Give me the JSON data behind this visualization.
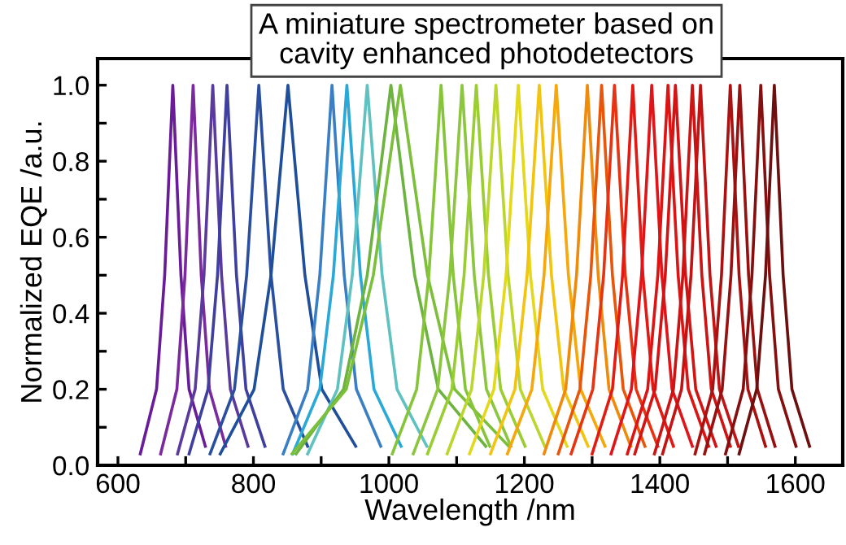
{
  "chart_data": {
    "type": "line",
    "title": "A miniature spectrometer based on\ncavity enhanced photodetectors",
    "xlabel": "Wavelength /nm",
    "ylabel": "Normalized EQE /a.u.",
    "xlim": [
      570,
      1670
    ],
    "ylim": [
      0,
      1.07
    ],
    "xticks": [
      600,
      {
        "value": 700,
        "label": null
      },
      800,
      {
        "value": 900,
        "label": null
      },
      1000,
      {
        "value": 1100,
        "label": null
      },
      1200,
      {
        "value": 1300,
        "label": null
      },
      1400,
      {
        "value": 1500,
        "label": null
      },
      1600
    ],
    "yticks": [
      {
        "value": 0,
        "label": "0.0"
      },
      {
        "value": 0.1,
        "label": null
      },
      {
        "value": 0.2,
        "label": "0.2"
      },
      {
        "value": 0.3,
        "label": null
      },
      {
        "value": 0.4,
        "label": "0.4"
      },
      {
        "value": 0.5,
        "label": null
      },
      {
        "value": 0.6,
        "label": "0.6"
      },
      {
        "value": 0.7,
        "label": null
      },
      {
        "value": 0.8,
        "label": "0.8"
      },
      {
        "value": 0.9,
        "label": null
      },
      {
        "value": 1.0,
        "label": "1.0"
      }
    ],
    "grid": false,
    "legend": false,
    "marker": "none",
    "line_style": "solid",
    "series": [
      {
        "color": "#6a1b9a",
        "x": [
          633,
          657,
          669,
          681,
          693,
          705,
          729
        ],
        "values": [
          0.03,
          0.2,
          0.5,
          1.0,
          0.5,
          0.2,
          0.05
        ]
      },
      {
        "color": "#7b2a9e",
        "x": [
          663,
          687,
          699,
          711,
          723,
          735,
          759
        ],
        "values": [
          0.03,
          0.2,
          0.5,
          1.0,
          0.5,
          0.2,
          0.05
        ]
      },
      {
        "color": "#5b3a9e",
        "x": [
          688,
          714,
          727,
          740,
          753,
          766,
          792
        ],
        "values": [
          0.03,
          0.2,
          0.5,
          1.0,
          0.5,
          0.2,
          0.05
        ]
      },
      {
        "color": "#3f3f9f",
        "x": [
          705,
          733,
          747,
          761,
          775,
          789,
          817
        ],
        "values": [
          0.03,
          0.2,
          0.5,
          1.0,
          0.5,
          0.2,
          0.05
        ]
      },
      {
        "color": "#2b4fa0",
        "x": [
          736,
          772,
          790,
          808,
          826,
          844,
          880
        ],
        "values": [
          0.03,
          0.2,
          0.5,
          1.0,
          0.5,
          0.2,
          0.05
        ]
      },
      {
        "color": "#1f4f9a",
        "x": [
          751,
          801,
          826,
          851,
          876,
          901,
          951
        ],
        "values": [
          0.03,
          0.2,
          0.5,
          1.0,
          0.5,
          0.2,
          0.05
        ]
      },
      {
        "color": "#3a7fc4",
        "x": [
          844,
          880,
          898,
          916,
          934,
          952,
          988
        ],
        "values": [
          0.03,
          0.2,
          0.5,
          1.0,
          0.5,
          0.2,
          0.05
        ]
      },
      {
        "color": "#2aa8d8",
        "x": [
          858,
          898,
          918,
          938,
          958,
          978,
          1018
        ],
        "values": [
          0.03,
          0.2,
          0.5,
          1.0,
          0.5,
          0.2,
          0.05
        ]
      },
      {
        "color": "#5fc1c0",
        "x": [
          880,
          924,
          946,
          968,
          990,
          1012,
          1056
        ],
        "values": [
          0.03,
          0.2,
          0.5,
          1.0,
          0.5,
          0.2,
          0.05
        ]
      },
      {
        "color": "#6db33f",
        "x": [
          863,
          933,
          968,
          1003,
          1038,
          1073,
          1143
        ],
        "values": [
          0.03,
          0.2,
          0.5,
          1.0,
          0.5,
          0.2,
          0.05
        ]
      },
      {
        "color": "#7cbf3a",
        "x": [
          857,
          937,
          977,
          1017,
          1057,
          1097,
          1177
        ],
        "values": [
          0.03,
          0.2,
          0.5,
          1.0,
          0.5,
          0.2,
          0.05
        ]
      },
      {
        "color": "#86c53a",
        "x": [
          1005,
          1041,
          1059,
          1077,
          1095,
          1113,
          1149
        ],
        "values": [
          0.03,
          0.2,
          0.5,
          1.0,
          0.5,
          0.2,
          0.05
        ]
      },
      {
        "color": "#8cc63f",
        "x": [
          1036,
          1072,
          1090,
          1108,
          1126,
          1144,
          1180
        ],
        "values": [
          0.03,
          0.2,
          0.5,
          1.0,
          0.5,
          0.2,
          0.05
        ]
      },
      {
        "color": "#9acd32",
        "x": [
          1057,
          1093,
          1111,
          1129,
          1147,
          1165,
          1201
        ],
        "values": [
          0.03,
          0.2,
          0.5,
          1.0,
          0.5,
          0.2,
          0.05
        ]
      },
      {
        "color": "#bcd630",
        "x": [
          1086,
          1122,
          1140,
          1158,
          1176,
          1194,
          1230
        ],
        "values": [
          0.03,
          0.2,
          0.5,
          1.0,
          0.5,
          0.2,
          0.05
        ]
      },
      {
        "color": "#e3d81c",
        "x": [
          1119,
          1155,
          1173,
          1191,
          1209,
          1227,
          1263
        ],
        "values": [
          0.03,
          0.2,
          0.5,
          1.0,
          0.5,
          0.2,
          0.05
        ]
      },
      {
        "color": "#f2c40f",
        "x": [
          1150,
          1186,
          1204,
          1222,
          1240,
          1258,
          1294
        ],
        "values": [
          0.03,
          0.2,
          0.5,
          1.0,
          0.5,
          0.2,
          0.05
        ]
      },
      {
        "color": "#f5a70c",
        "x": [
          1175,
          1211,
          1229,
          1247,
          1265,
          1283,
          1319
        ],
        "values": [
          0.03,
          0.2,
          0.5,
          1.0,
          0.5,
          0.2,
          0.05
        ]
      },
      {
        "color": "#f08a0a",
        "x": [
          1229,
          1261,
          1277,
          1293,
          1309,
          1325,
          1357
        ],
        "values": [
          0.03,
          0.2,
          0.5,
          1.0,
          0.5,
          0.2,
          0.05
        ]
      },
      {
        "color": "#e8560c",
        "x": [
          1250,
          1282,
          1298,
          1314,
          1330,
          1346,
          1378
        ],
        "values": [
          0.03,
          0.2,
          0.5,
          1.0,
          0.5,
          0.2,
          0.05
        ]
      },
      {
        "color": "#e63312",
        "x": [
          1269,
          1301,
          1317,
          1333,
          1349,
          1365,
          1397
        ],
        "values": [
          0.03,
          0.2,
          0.5,
          1.0,
          0.5,
          0.2,
          0.05
        ]
      },
      {
        "color": "#e31a14",
        "x": [
          1300,
          1330,
          1345,
          1360,
          1375,
          1390,
          1420
        ],
        "values": [
          0.03,
          0.2,
          0.5,
          1.0,
          0.5,
          0.2,
          0.05
        ]
      },
      {
        "color": "#e0151a",
        "x": [
          1328,
          1358,
          1373,
          1388,
          1403,
          1418,
          1448
        ],
        "values": [
          0.03,
          0.2,
          0.5,
          1.0,
          0.5,
          0.2,
          0.05
        ]
      },
      {
        "color": "#dd1414",
        "x": [
          1352,
          1382,
          1397,
          1412,
          1427,
          1442,
          1472
        ],
        "values": [
          0.03,
          0.2,
          0.5,
          1.0,
          0.5,
          0.2,
          0.05
        ]
      },
      {
        "color": "#d41414",
        "x": [
          1363,
          1393,
          1408,
          1423,
          1438,
          1453,
          1483
        ],
        "values": [
          0.03,
          0.2,
          0.5,
          1.0,
          0.5,
          0.2,
          0.05
        ]
      },
      {
        "color": "#cc1414",
        "x": [
          1392,
          1420,
          1434,
          1448,
          1462,
          1476,
          1504
        ],
        "values": [
          0.03,
          0.2,
          0.5,
          1.0,
          0.5,
          0.2,
          0.05
        ]
      },
      {
        "color": "#c21414",
        "x": [
          1404,
          1432,
          1446,
          1460,
          1474,
          1488,
          1516
        ],
        "values": [
          0.03,
          0.2,
          0.5,
          1.0,
          0.5,
          0.2,
          0.05
        ]
      },
      {
        "color": "#aa1212",
        "x": [
          1452,
          1478,
          1491,
          1504,
          1517,
          1530,
          1556
        ],
        "values": [
          0.03,
          0.2,
          0.5,
          1.0,
          0.5,
          0.2,
          0.05
        ]
      },
      {
        "color": "#981010",
        "x": [
          1466,
          1492,
          1505,
          1518,
          1531,
          1544,
          1570
        ],
        "values": [
          0.03,
          0.2,
          0.5,
          1.0,
          0.5,
          0.2,
          0.05
        ]
      },
      {
        "color": "#850f0f",
        "x": [
          1497,
          1523,
          1536,
          1549,
          1562,
          1575,
          1601
        ],
        "values": [
          0.03,
          0.2,
          0.5,
          1.0,
          0.5,
          0.2,
          0.05
        ]
      },
      {
        "color": "#6e0f0f",
        "x": [
          1517,
          1543,
          1556,
          1569,
          1582,
          1595,
          1621
        ],
        "values": [
          0.03,
          0.2,
          0.5,
          1.0,
          0.5,
          0.2,
          0.05
        ]
      }
    ]
  }
}
